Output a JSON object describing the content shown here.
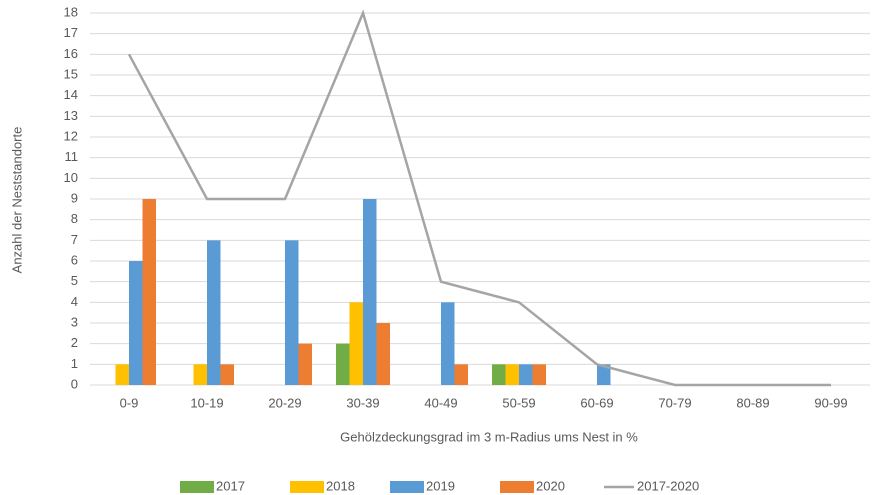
{
  "chart_data": {
    "type": "bar",
    "x_label": "Gehölzdeckungsgrad im 3 m-Radius ums Nest in %",
    "y_label": "Anzahl der Neststandorte",
    "categories": [
      "0-9",
      "10-19",
      "20-29",
      "30-39",
      "40-49",
      "50-59",
      "60-69",
      "70-79",
      "80-89",
      "90-99"
    ],
    "series": [
      {
        "name": "2017",
        "color": "#70ad47",
        "values": [
          0,
          0,
          0,
          2,
          0,
          1,
          0,
          0,
          0,
          0
        ]
      },
      {
        "name": "2018",
        "color": "#ffc000",
        "values": [
          1,
          1,
          0,
          4,
          0,
          1,
          0,
          0,
          0,
          0
        ]
      },
      {
        "name": "2019",
        "color": "#5b9bd5",
        "values": [
          6,
          7,
          7,
          9,
          4,
          1,
          1,
          0,
          0,
          0
        ]
      },
      {
        "name": "2020",
        "color": "#ed7d31",
        "values": [
          9,
          1,
          2,
          3,
          1,
          1,
          0,
          0,
          0,
          0
        ]
      },
      {
        "name": "2017-2020",
        "type": "line",
        "color": "#a5a5a5",
        "values": [
          16,
          9,
          9,
          18,
          5,
          4,
          1,
          0,
          0,
          0
        ]
      }
    ],
    "ylim": [
      0,
      18
    ],
    "yticks": [
      0,
      1,
      2,
      3,
      4,
      5,
      6,
      7,
      8,
      9,
      10,
      11,
      12,
      13,
      14,
      15,
      16,
      17,
      18
    ],
    "grid": true,
    "legend": "bottom"
  }
}
